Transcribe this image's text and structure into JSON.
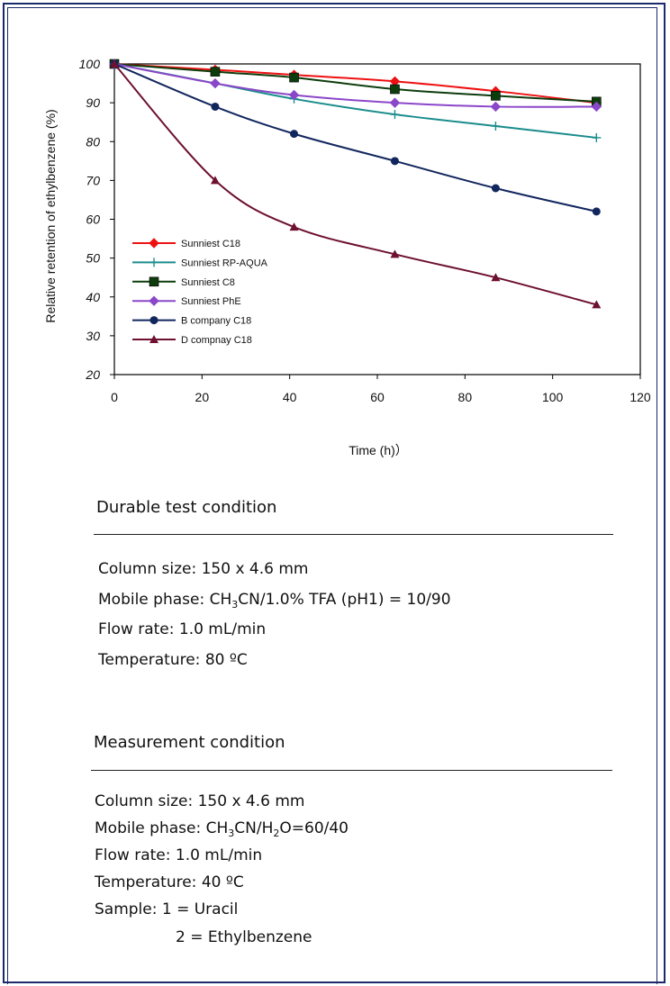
{
  "chart_data": {
    "type": "line",
    "xlabel": "Time (h)）",
    "ylabel": "Relative retention of ethylbenzene (%)",
    "xlim": [
      0,
      120
    ],
    "ylim": [
      20,
      100
    ],
    "x_ticks": [
      "0",
      "20",
      "40",
      "60",
      "80",
      "100",
      "120"
    ],
    "y_ticks": [
      "20",
      "30",
      "40",
      "50",
      "60",
      "70",
      "80",
      "90",
      "100"
    ],
    "grid": false,
    "legend_position": "lower-left inside",
    "series": [
      {
        "name": "Sunniest C18",
        "color": "#ee1111",
        "marker": "diamond",
        "x": [
          0,
          23,
          41,
          64,
          87,
          110
        ],
        "y": [
          100,
          98.5,
          97.2,
          95.5,
          93,
          90
        ]
      },
      {
        "name": "Sunniest RP-AQUA",
        "color": "#1a8c8c",
        "marker": "plus",
        "x": [
          0,
          23,
          41,
          64,
          87,
          110
        ],
        "y": [
          100,
          95,
          91,
          87,
          84,
          81
        ]
      },
      {
        "name": "Sunniest C8",
        "color": "#0d3d0d",
        "marker": "square",
        "x": [
          0,
          23,
          41,
          64,
          87,
          110
        ],
        "y": [
          100,
          98,
          96.5,
          93.5,
          91.8,
          90.3
        ]
      },
      {
        "name": "Sunniest PhE",
        "color": "#8b47c9",
        "marker": "diamond",
        "x": [
          0,
          23,
          41,
          64,
          87,
          110
        ],
        "y": [
          100,
          95,
          92,
          90,
          89,
          89
        ]
      },
      {
        "name": "B company C18",
        "color": "#12265e",
        "marker": "circle",
        "x": [
          0,
          23,
          41,
          64,
          87,
          110
        ],
        "y": [
          100,
          89,
          82,
          75,
          68,
          62
        ]
      },
      {
        "name": "D compnay C18",
        "color": "#6e1030",
        "marker": "triangle",
        "x": [
          0,
          23,
          41,
          64,
          87,
          110
        ],
        "y": [
          100,
          70,
          58,
          51,
          45,
          38
        ]
      }
    ]
  },
  "durable": {
    "heading": "Durable test condition",
    "column_size": "Column size:  150 x 4.6 mm",
    "mobile_phase_prefix": "Mobile phase:  CH",
    "mobile_phase_sub1": "3",
    "mobile_phase_rest": "CN/1.0% TFA (pH1) = 10/90",
    "flow_rate": "Flow rate: 1.0 mL/min",
    "temperature": "Temperature: 80 ºC"
  },
  "measurement": {
    "heading": "Measurement condition",
    "column_size": "Column size: 150 x 4.6 mm",
    "mobile_phase_prefix": "Mobile phase:  CH",
    "mobile_phase_sub1": "3",
    "mobile_phase_mid": "CN/H",
    "mobile_phase_sub2": "2",
    "mobile_phase_rest": "O=60/40",
    "flow_rate": "Flow rate: 1.0 mL/min",
    "temperature": "Temperature: 40 ºC",
    "sample_1": "Sample: 1 = Uracil",
    "sample_2": "2 = Ethylbenzene"
  }
}
